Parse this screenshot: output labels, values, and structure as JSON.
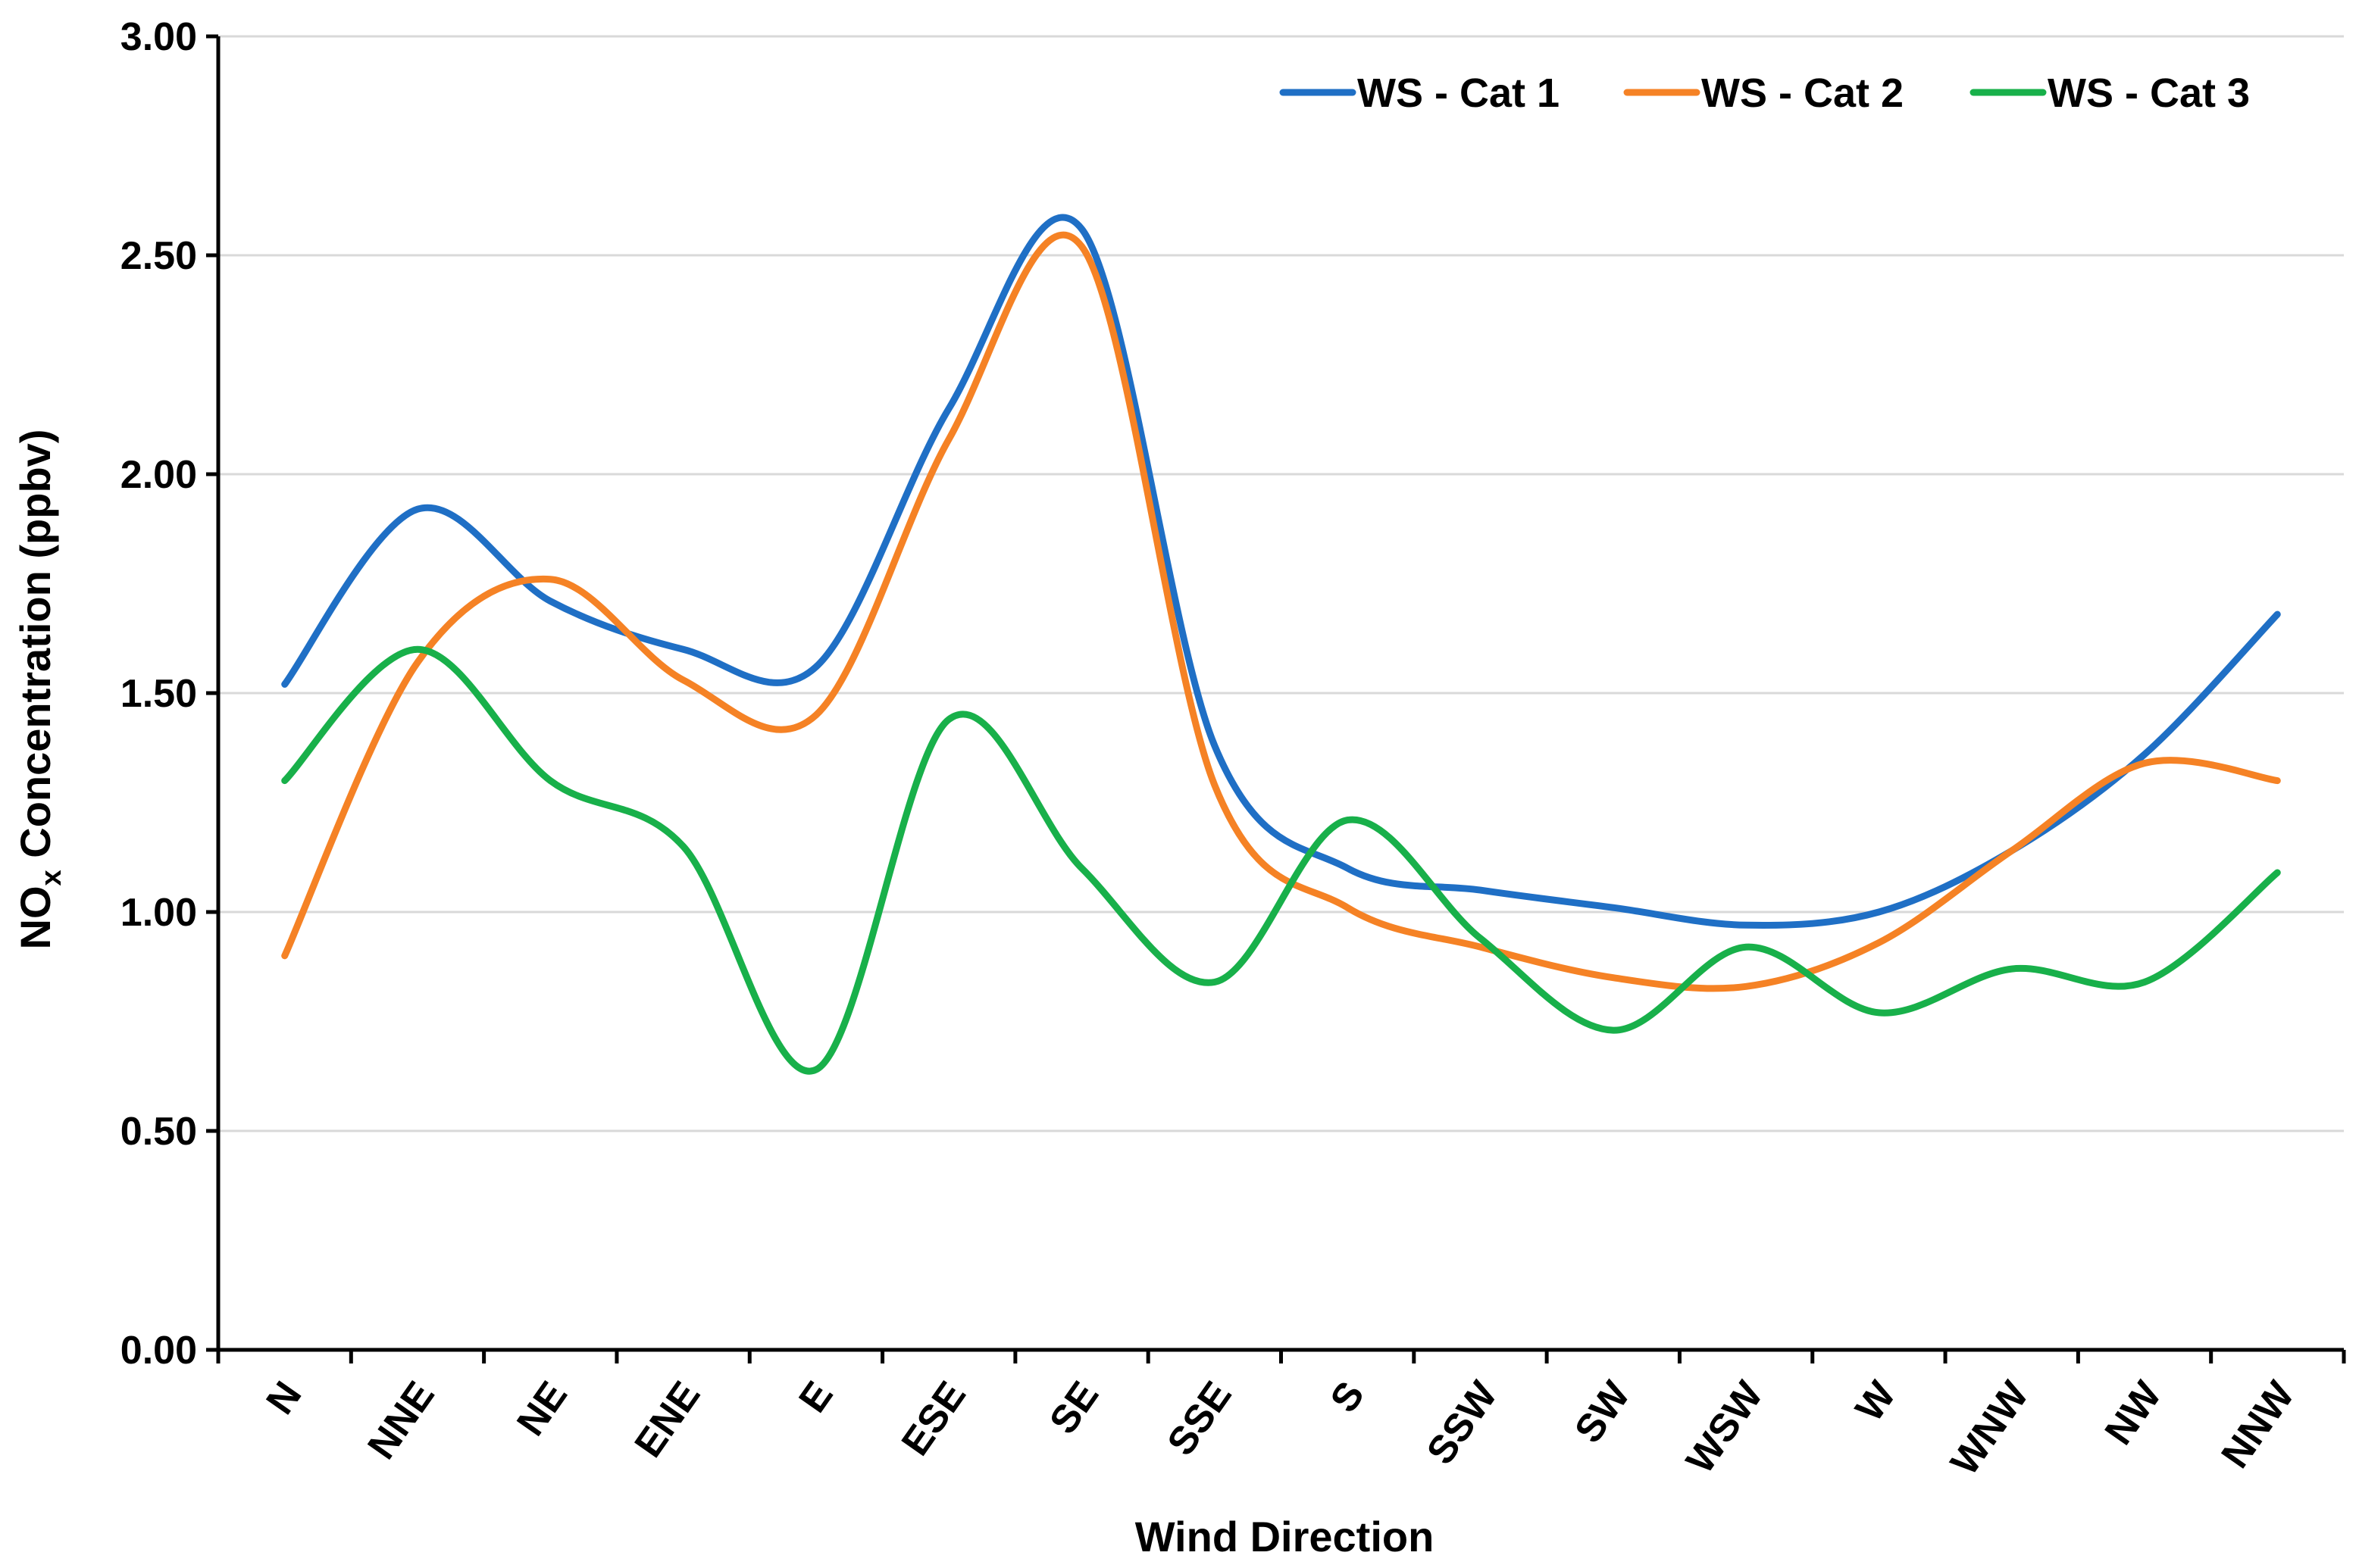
{
  "chart_data": {
    "type": "line",
    "smooth": true,
    "title": "",
    "xlabel": "Wind Direction",
    "ylabel": {
      "prefix": "NO",
      "subscript": "x",
      "suffix": " Concentration (ppbv)"
    },
    "ylim": [
      0,
      3
    ],
    "yticks": [
      "0.00",
      "0.50",
      "1.00",
      "1.50",
      "2.00",
      "2.50",
      "3.00"
    ],
    "grid": "horizontal",
    "legend_position": "top-right",
    "categories": [
      "N",
      "NNE",
      "NE",
      "ENE",
      "E",
      "ESE",
      "SE",
      "SSE",
      "S",
      "SSW",
      "SW",
      "WSW",
      "W",
      "WNW",
      "NW",
      "NNW"
    ],
    "series": [
      {
        "name": "WS - Cat 1",
        "color": "#1F6FC5",
        "values": [
          1.52,
          1.92,
          1.71,
          1.6,
          1.56,
          2.15,
          2.56,
          1.38,
          1.1,
          1.05,
          1.01,
          0.97,
          1.0,
          1.14,
          1.36,
          1.68
        ]
      },
      {
        "name": "WS - Cat 2",
        "color": "#F58225",
        "values": [
          0.9,
          1.57,
          1.76,
          1.53,
          1.45,
          2.08,
          2.52,
          1.29,
          1.01,
          0.92,
          0.85,
          0.83,
          0.93,
          1.14,
          1.34,
          1.3
        ]
      },
      {
        "name": "WS - Cat 3",
        "color": "#18B04A",
        "values": [
          1.3,
          1.6,
          1.3,
          1.15,
          0.64,
          1.44,
          1.1,
          0.84,
          1.21,
          0.94,
          0.73,
          0.92,
          0.77,
          0.87,
          0.84,
          1.09
        ]
      }
    ]
  }
}
